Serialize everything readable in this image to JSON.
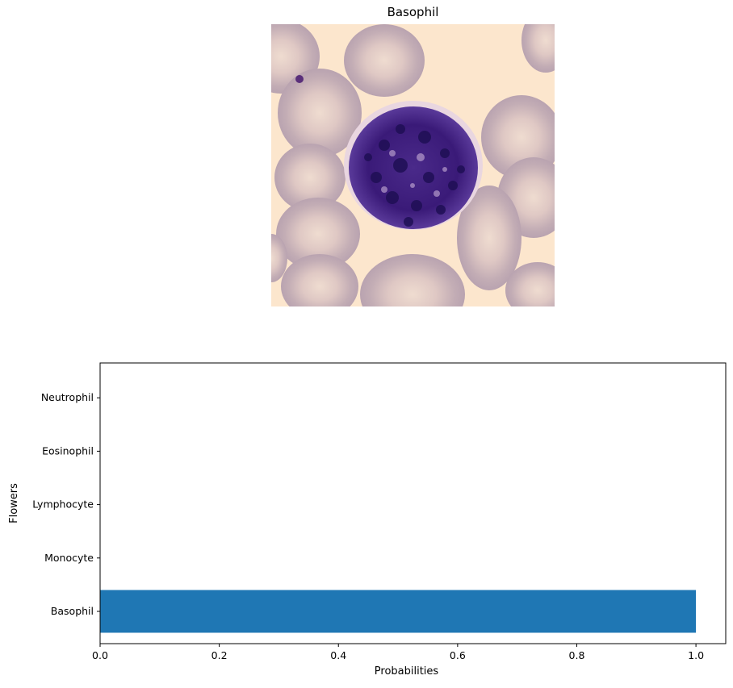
{
  "image_panel": {
    "title": "Basophil",
    "picture": "blood-smear micrograph showing a single basophil surrounded by red blood cells"
  },
  "chart_data": {
    "type": "bar",
    "orientation": "horizontal",
    "categories": [
      "Basophil",
      "Monocyte",
      "Lymphocyte",
      "Eosinophil",
      "Neutrophil"
    ],
    "values": [
      1.0,
      0.0,
      0.0,
      0.0,
      0.0
    ],
    "xlabel": "Probabilities",
    "ylabel": "Flowers",
    "xlim": [
      0.0,
      1.05
    ],
    "xticks": [
      "0.0",
      "0.2",
      "0.4",
      "0.6",
      "0.8",
      "1.0"
    ],
    "bar_color": "#1f77b4",
    "grid": false
  }
}
